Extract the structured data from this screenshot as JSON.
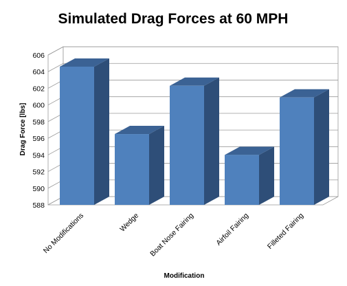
{
  "chart_data": {
    "type": "bar",
    "title": "Simulated Drag Forces at 60 MPH",
    "xlabel": "Modification",
    "ylabel": "Drag Force [lbs]",
    "categories": [
      "No Modifications",
      "Wedge",
      "Boat Nose Fairing",
      "Airfoil Fairing",
      "Filleted Fairing"
    ],
    "values": [
      604.6,
      596.5,
      602.3,
      594.0,
      600.9
    ],
    "ylim": [
      588,
      606
    ],
    "yticks": [
      "588",
      "590",
      "592",
      "594",
      "596",
      "598",
      "600",
      "602",
      "604",
      "606"
    ],
    "grid": true,
    "legend": "none",
    "style": "3d-column",
    "colors": {
      "bar_front": "#4f81bd",
      "bar_side": "#2e4e78",
      "bar_top": "#3b6294",
      "grid": "#999999",
      "wall": "#ffffff"
    }
  }
}
